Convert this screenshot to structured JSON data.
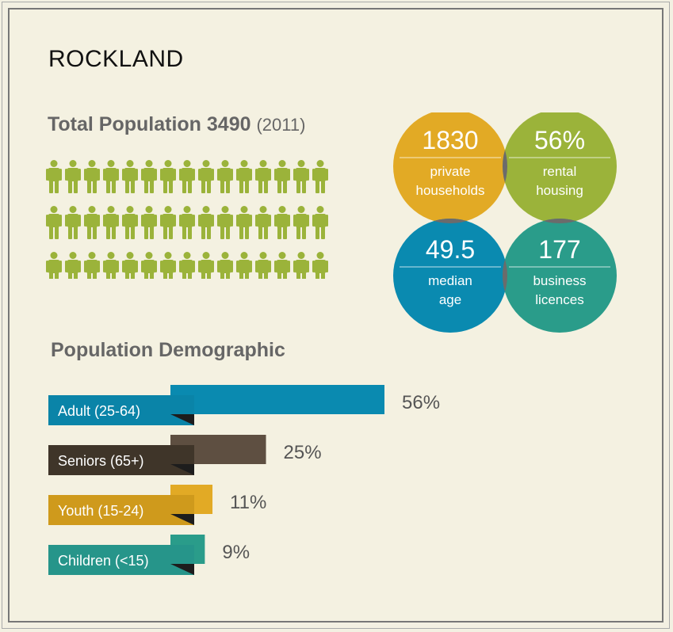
{
  "title": "ROCKLAND",
  "population": {
    "label": "Total Population 3490",
    "year": "(2011)",
    "icon_rows": 3,
    "icon_cols": 15,
    "icon_color": "#9bb33a"
  },
  "stats": [
    {
      "value": "1830",
      "line1": "private",
      "line2": "households",
      "color": "#e2aa25"
    },
    {
      "value": "56%",
      "line1": "rental",
      "line2": "housing",
      "color": "#9bb33a"
    },
    {
      "value": "49.5",
      "line1": "median",
      "line2": "age",
      "color": "#0a8ab0"
    },
    {
      "value": "177",
      "line1": "business",
      "line2": "licences",
      "color": "#2a9c8a"
    }
  ],
  "demographic_title": "Population Demographic",
  "chart_data": {
    "type": "bar",
    "categories": [
      "Adult (25-64)",
      "Seniors (65+)",
      "Youth (15-24)",
      "Children (<15)"
    ],
    "values": [
      56,
      25,
      11,
      9
    ],
    "value_labels": [
      "56%",
      "25%",
      "11%",
      "9%"
    ],
    "colors": [
      "#0a8ab0",
      "#5e4f41",
      "#e2aa25",
      "#2a9c8a"
    ],
    "label_colors": [
      "#0a84a8",
      "#3f3529",
      "#cf9a1c",
      "#26958a"
    ]
  }
}
